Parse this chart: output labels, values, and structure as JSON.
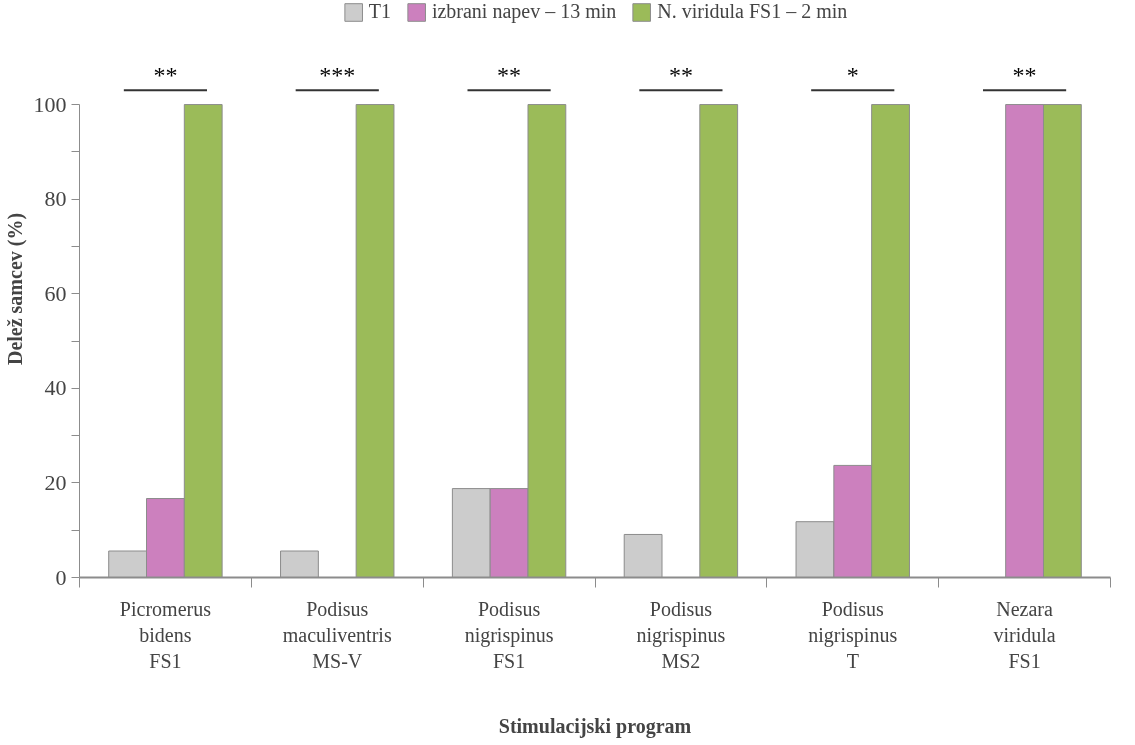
{
  "chart_data": {
    "type": "bar",
    "xlabel": "Stimulacijski program",
    "ylabel": "Delež samcev (%)",
    "categories": [
      "Picromerus bidens FS1",
      "Podisus maculiventris MS-V",
      "Podisus nigrispinus FS1",
      "Podisus nigrispinus MS2",
      "Podisus nigrispinus T",
      "Nezara viridula FS1"
    ],
    "series": [
      {
        "name": "T1",
        "color": "#cccccc",
        "values": [
          5.6,
          5.6,
          18.8,
          9.1,
          11.8,
          0
        ]
      },
      {
        "name": "izbrani napev – 13 min",
        "color": "#cc80be",
        "values": [
          16.7,
          0,
          18.8,
          0,
          23.7,
          100
        ]
      },
      {
        "name": "N. viridula FS1 – 2 min",
        "color": "#9bbb59",
        "values": [
          100,
          100,
          100,
          100,
          100,
          100
        ]
      }
    ],
    "ylim": [
      0,
      100
    ],
    "yticks": [
      0,
      {
        "value": 10,
        "label": null
      },
      20,
      {
        "value": 30,
        "label": null
      },
      40,
      {
        "value": 50,
        "label": null
      },
      60,
      {
        "value": 70,
        "label": null
      },
      80,
      {
        "value": 90,
        "label": null
      },
      100
    ],
    "legend": "top",
    "grid": false,
    "annotations": [
      "**",
      "***",
      "**",
      "**",
      "*",
      "**"
    ]
  }
}
